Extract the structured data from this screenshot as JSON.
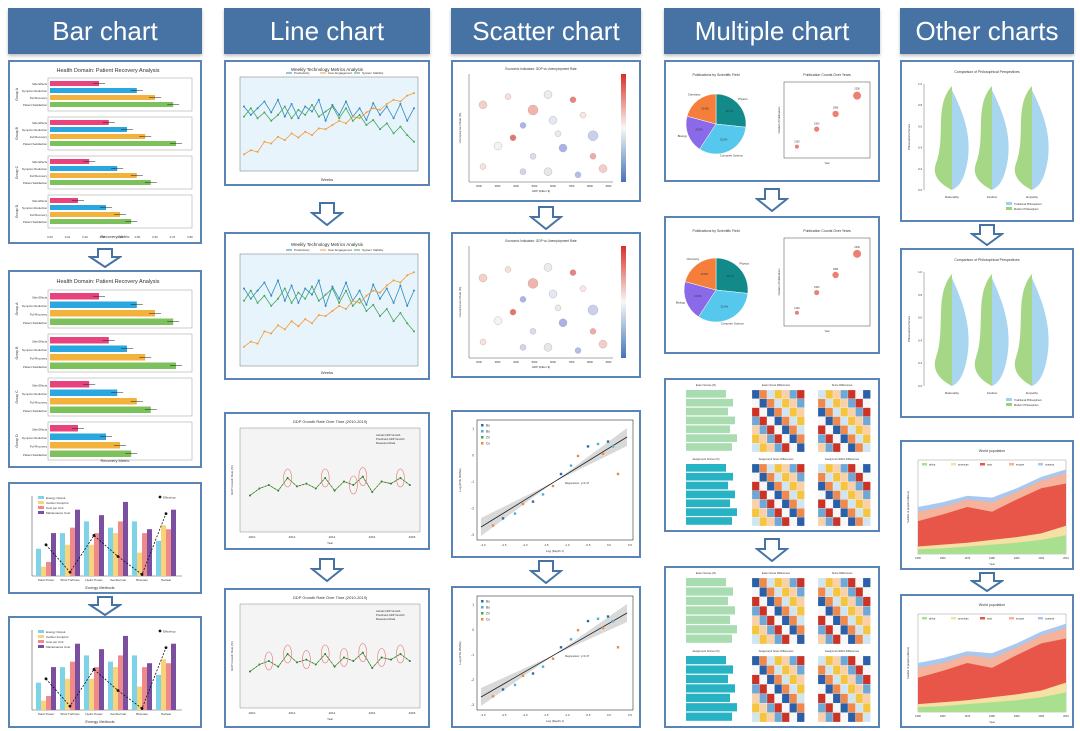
{
  "columns": [
    {
      "title": "Bar chart"
    },
    {
      "title": "Line chart"
    },
    {
      "title": "Scatter chart"
    },
    {
      "title": "Multiple chart"
    },
    {
      "title": "Other charts"
    }
  ],
  "colors": {
    "header": "#4673a3",
    "border": "#5a84b5",
    "pink": "#e8437d",
    "blue": "#2aa7e1",
    "orange": "#f3b23b",
    "green": "#7cc15c",
    "line_blue": "#2e8bc0",
    "line_orange": "#f39b3a",
    "line_green": "#46a65e"
  },
  "bar_chart": {
    "title": "Health Domain: Patient Recovery Analysis",
    "xlabel": "Recovery Metric",
    "groups": [
      "Group A",
      "Group B",
      "Group C",
      "Group D"
    ],
    "rows": [
      "Side Effects",
      "Symptom Reduction",
      "Full Recovery",
      "Patient Satisfaction"
    ]
  },
  "energy_chart": {
    "xlabel": "Energy Methods",
    "categories": [
      "Solar Power",
      "Wind Turbines",
      "Hydro Power",
      "Geothermal",
      "Biomass",
      "Nuclear"
    ],
    "legend": [
      "Energy Output",
      "Carbon Footprint",
      "Cost per Unit",
      "Maintenance Cost",
      "Efficiency"
    ]
  },
  "line_chart": {
    "title": "Weekly Technology Metrics Analysis",
    "legend": [
      "Productivity",
      "User Engagement",
      "System Stability"
    ],
    "xlabel": "Weeks"
  },
  "gdp_chart": {
    "title": "GDP Growth Rate Over Time (2010-2019)",
    "legend": [
      "Actual GDP Growth",
      "Predicted GDP Growth",
      "Measured Data"
    ],
    "years": [
      "2010",
      "2012",
      "2014",
      "2016",
      "2018"
    ],
    "ylabel": "GDP Growth Rate (%)",
    "xlabel": "Year"
  },
  "scatter_chart": {
    "title": "Economic Indicators: GDP vs Unemployment Rate",
    "xlabel": "GDP (billion $)",
    "ylabel": "Unemployment Rate (%)",
    "x_ticks": [
      "2000",
      "3000",
      "4000",
      "5000",
      "6000",
      "7000",
      "8000",
      "9000"
    ]
  },
  "regression_chart": {
    "legend": [
      "Bu",
      "Bu",
      "Zn",
      "Cu"
    ],
    "xlabel": "Log (Depth z)",
    "ylabel": "Log (RTE RMSE)",
    "annotation": "Regression: y=0.47",
    "x_ticks": [
      "-3.0",
      "-2.5",
      "-2.0",
      "-1.5",
      "-1.0",
      "-0.5",
      "0.0",
      "0.5"
    ],
    "y_ticks": [
      "1",
      "0",
      "-1",
      "-2",
      "-3"
    ]
  },
  "pie_chart": {
    "title": "Publications by Scientific Field",
    "labels": [
      "Physics",
      "Computer Science",
      "Biology",
      "Chemistry"
    ],
    "values": [
      "26.7%",
      "32.5%",
      "20.0%",
      "20.8%"
    ]
  },
  "bubble_chart": {
    "title": "Publication Counts Over Years",
    "xlabel": "Year",
    "ylabel": "Number of Publications",
    "points": [
      "1200",
      "1500",
      "1850",
      "2200"
    ]
  },
  "heatmap_chart": {
    "titles": [
      "Exam Scores (%)",
      "Exam Score Differences",
      "Score Differences",
      "Assignment Scores (%)",
      "Assignment Score Differences",
      "Assignment Effort Differences"
    ]
  },
  "violin_chart": {
    "title": "Comparison of Philosophical Perspectives",
    "ylabel": "Philosophical Score",
    "categories": [
      "Rationality",
      "Intuition",
      "Empathy"
    ],
    "legend": [
      "Traditional Philosophers",
      "Modern Philosophers"
    ],
    "y_ticks": [
      "1.0",
      "0.8",
      "0.6",
      "0.4",
      "0.2",
      "0.0"
    ]
  },
  "area_chart": {
    "title": "World population",
    "legend": [
      "africa",
      "americas",
      "asia",
      "europe",
      "oceania"
    ],
    "xlabel": "Year",
    "ylabel": "Number of people (millions)",
    "x_ticks": [
      "1950",
      "1960",
      "1970",
      "1980",
      "1990",
      "2000",
      "2010"
    ]
  }
}
